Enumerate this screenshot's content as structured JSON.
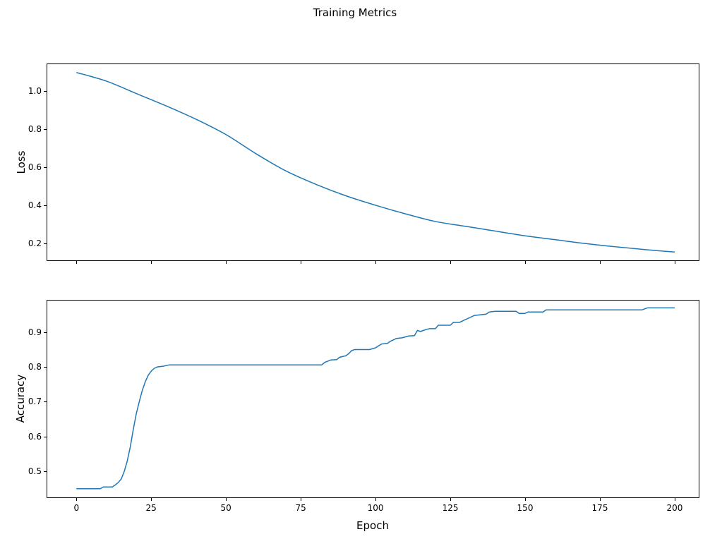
{
  "figure": {
    "title": "Training Metrics",
    "background": "#ffffff",
    "line_color": "#1f77b4"
  },
  "chart_data": [
    {
      "type": "line",
      "title": "",
      "xlabel": "",
      "ylabel": "Loss",
      "legend": "none",
      "grid": false,
      "xlim": [
        -9.98,
        208.28
      ],
      "ylim": [
        0.108,
        1.142
      ],
      "xticks": [
        0,
        25,
        50,
        75,
        100,
        125,
        150,
        175,
        200
      ],
      "xtick_labels": [
        "",
        "",
        "",
        "",
        "",
        "",
        "",
        "",
        ""
      ],
      "yticks": [
        0.2,
        0.4,
        0.6,
        0.8,
        1.0
      ],
      "ytick_labels": [
        "0.2",
        "0.4",
        "0.6",
        "0.8",
        "1.0"
      ],
      "series": [
        {
          "name": "loss",
          "x": [
            0,
            10,
            20,
            30,
            40,
            50,
            60,
            70,
            80,
            90,
            100,
            110,
            120,
            130,
            140,
            150,
            160,
            170,
            180,
            190,
            200
          ],
          "y": [
            1.095,
            1.05,
            0.985,
            0.92,
            0.85,
            0.77,
            0.67,
            0.58,
            0.51,
            0.45,
            0.4,
            0.355,
            0.315,
            0.29,
            0.265,
            0.24,
            0.22,
            0.2,
            0.183,
            0.168,
            0.155
          ]
        }
      ]
    },
    {
      "type": "line",
      "title": "",
      "xlabel": "Epoch",
      "ylabel": "Accuracy",
      "legend": "none",
      "grid": false,
      "xlim": [
        -9.98,
        208.28
      ],
      "ylim": [
        0.423,
        0.993
      ],
      "xticks": [
        0,
        25,
        50,
        75,
        100,
        125,
        150,
        175,
        200
      ],
      "xtick_labels": [
        "0",
        "25",
        "50",
        "75",
        "100",
        "125",
        "150",
        "175",
        "200"
      ],
      "yticks": [
        0.5,
        0.6,
        0.7,
        0.8,
        0.9
      ],
      "ytick_labels": [
        "0.5",
        "0.6",
        "0.7",
        "0.8",
        "0.9"
      ],
      "series": [
        {
          "name": "accuracy",
          "x": [
            0,
            8,
            9,
            12,
            13,
            14,
            15,
            16,
            17,
            18,
            19,
            20,
            21,
            22,
            23,
            24,
            25,
            26,
            27,
            29,
            31,
            82,
            83,
            85,
            87,
            88,
            90,
            91,
            92,
            93,
            98,
            100,
            102,
            104,
            105,
            107,
            109,
            111,
            113,
            114,
            115,
            117,
            118,
            120,
            121,
            125,
            126,
            128,
            130,
            131,
            133,
            135,
            137,
            138,
            140,
            147,
            148,
            150,
            151,
            156,
            157,
            189,
            191,
            200
          ],
          "y": [
            0.45,
            0.45,
            0.455,
            0.455,
            0.461,
            0.468,
            0.478,
            0.5,
            0.53,
            0.57,
            0.62,
            0.665,
            0.7,
            0.732,
            0.757,
            0.776,
            0.788,
            0.796,
            0.8,
            0.802,
            0.806,
            0.806,
            0.813,
            0.82,
            0.821,
            0.828,
            0.832,
            0.838,
            0.847,
            0.85,
            0.85,
            0.855,
            0.866,
            0.868,
            0.874,
            0.882,
            0.884,
            0.889,
            0.89,
            0.905,
            0.902,
            0.908,
            0.91,
            0.91,
            0.92,
            0.92,
            0.928,
            0.928,
            0.936,
            0.94,
            0.948,
            0.95,
            0.952,
            0.958,
            0.96,
            0.96,
            0.954,
            0.954,
            0.958,
            0.958,
            0.964,
            0.964,
            0.97,
            0.97
          ]
        }
      ]
    }
  ]
}
